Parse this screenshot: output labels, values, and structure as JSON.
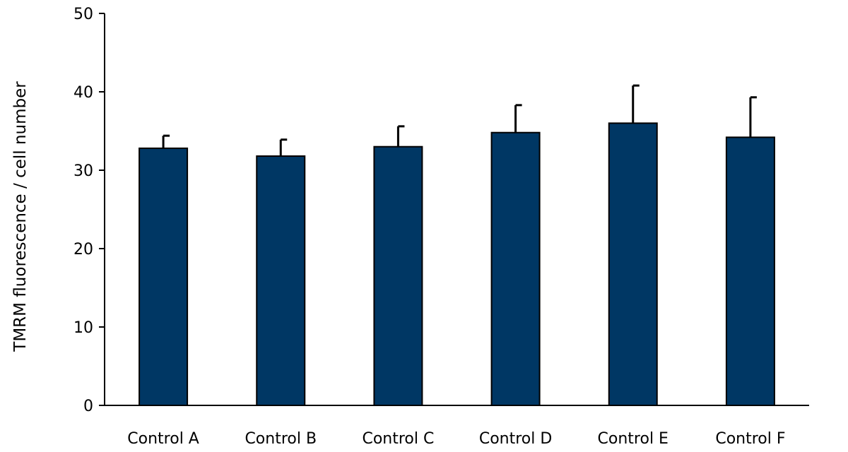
{
  "chart_data": {
    "type": "bar",
    "title": "",
    "xlabel": "",
    "ylabel": "TMRM fluorescence / cell number",
    "categories": [
      "Control A",
      "Control B",
      "Control C",
      "Control D",
      "Control E",
      "Control F"
    ],
    "values": [
      32.8,
      31.8,
      33.0,
      34.8,
      36.0,
      34.2
    ],
    "error_upper": [
      1.6,
      2.1,
      2.6,
      3.5,
      4.8,
      5.1
    ],
    "ylim": [
      0,
      50
    ],
    "yticks": [
      0,
      10,
      20,
      30,
      40,
      50
    ],
    "ytick_labels": [
      "0",
      "10",
      "20",
      "30",
      "40",
      "50"
    ],
    "grid": false,
    "bar_color": "#003764",
    "outline_color": "#000000"
  }
}
